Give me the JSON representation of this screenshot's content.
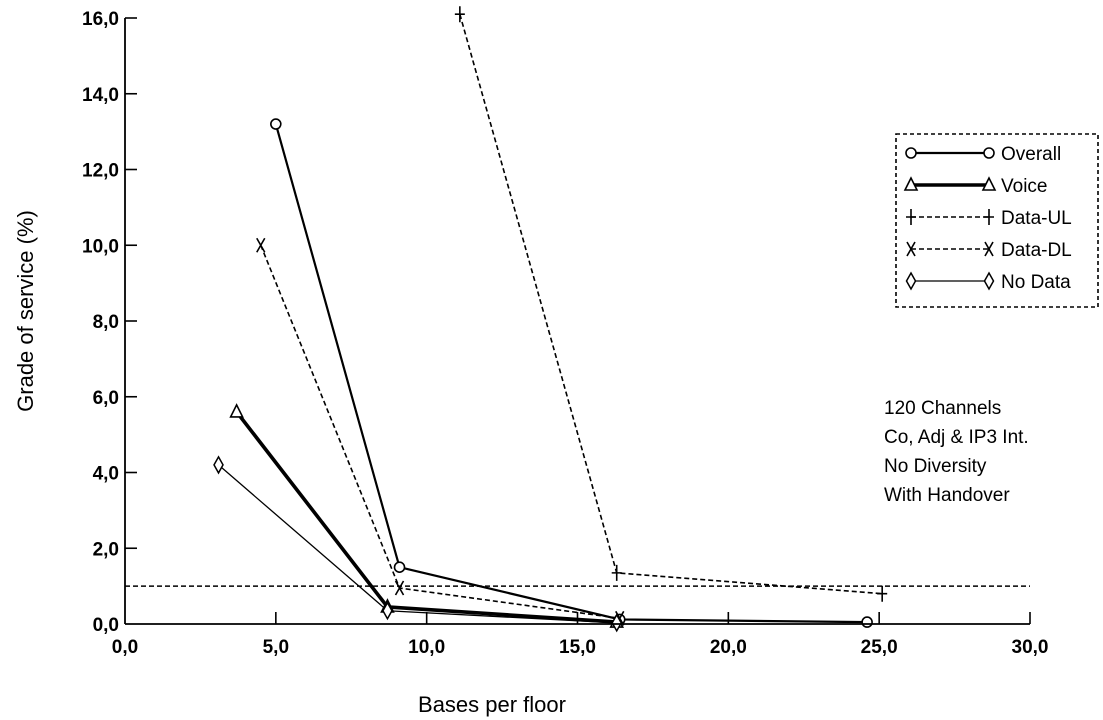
{
  "chart_data": {
    "type": "line",
    "xlabel": "Bases per floor",
    "ylabel": "Grade of service (%)",
    "xlim": [
      0,
      30
    ],
    "ylim": [
      0,
      16
    ],
    "x_ticks": [
      "0,0",
      "5,0",
      "10,0",
      "15,0",
      "20,0",
      "25,0",
      "30,0"
    ],
    "y_ticks": [
      "0,0",
      "2,0",
      "4,0",
      "6,0",
      "8,0",
      "10,0",
      "12,0",
      "14,0",
      "16,0"
    ],
    "reference_line": {
      "y": 1.0,
      "style": "dashed"
    },
    "grid": false,
    "legend_position": "right",
    "series": [
      {
        "name": "Overall",
        "marker": "circle",
        "line": "solid-medium",
        "x": [
          5.0,
          9.1,
          16.4,
          24.6
        ],
        "y": [
          13.2,
          1.5,
          0.12,
          0.05
        ]
      },
      {
        "name": "Voice",
        "marker": "triangle",
        "line": "solid-thick",
        "x": [
          3.7,
          8.7,
          16.3
        ],
        "y": [
          5.6,
          0.45,
          0.05
        ]
      },
      {
        "name": "Data-UL",
        "marker": "plus",
        "line": "dashed",
        "x": [
          11.1,
          16.3,
          25.1
        ],
        "y": [
          16.1,
          1.35,
          0.8
        ]
      },
      {
        "name": "Data-DL",
        "marker": "x",
        "line": "dashed",
        "x": [
          4.5,
          9.1,
          16.4
        ],
        "y": [
          10.0,
          0.95,
          0.15
        ]
      },
      {
        "name": "No Data",
        "marker": "diamond",
        "line": "solid-thin",
        "x": [
          3.1,
          8.7,
          16.3
        ],
        "y": [
          4.2,
          0.35,
          0.03
        ]
      }
    ],
    "annotations": [
      "120 Channels",
      "Co, Adj & IP3 Int.",
      "No Diversity",
      "With Handover"
    ]
  }
}
